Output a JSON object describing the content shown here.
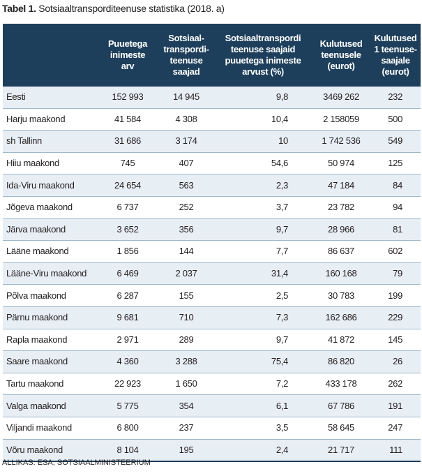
{
  "caption": {
    "label": "Tabel 1.",
    "title": "Sotsiaaltransporditeenuse statistika (2018. a)"
  },
  "table": {
    "columns": [
      "",
      "Puuetega\ninimeste\narv",
      "Sotsiaal-\ntranspordi-\nteenuse\nsaajad",
      "Sotsiaaltranspordi\nteenuse saajaid\npuuetega inimeste\narvust (%)",
      "Kulutused\nteenusele\n(eurot)",
      "Kulutused\n1 teenuse-\nsaajale\n(eurot)"
    ],
    "rows": [
      [
        "Eesti",
        "152 993",
        "14 945",
        "9,8",
        "3469 262",
        "232"
      ],
      [
        "Harju maakond",
        "41 584",
        "4 308",
        "10,4",
        "2 158059",
        "500"
      ],
      [
        "sh Tallinn",
        "31 686",
        "3 174",
        "10",
        "1 742 536",
        "549"
      ],
      [
        "Hiiu maakond",
        "745",
        "407",
        "54,6",
        "50 974",
        "125"
      ],
      [
        "Ida-Viru maakond",
        "24 654",
        "563",
        "2,3",
        "47 184",
        "84"
      ],
      [
        "Jõgeva maakond",
        "6 737",
        "252",
        "3,7",
        "23 782",
        "94"
      ],
      [
        "Järva maakond",
        "3 652",
        "356",
        "9,7",
        "28 966",
        "81"
      ],
      [
        "Lääne maakond",
        "1 856",
        "144",
        "7,7",
        "86 637",
        "602"
      ],
      [
        "Lääne-Viru maakond",
        "6 469",
        "2 037",
        "31,4",
        "160 168",
        "79"
      ],
      [
        "Põlva maakond",
        "6 287",
        "155",
        "2,5",
        "30 783",
        "199"
      ],
      [
        "Pärnu maakond",
        "9 681",
        "710",
        "7,3",
        "162 686",
        "229"
      ],
      [
        "Rapla maakond",
        "2 971",
        "289",
        "9,7",
        "41 872",
        "145"
      ],
      [
        "Saare maakond",
        "4 360",
        "3 288",
        "75,4",
        "86 820",
        "26"
      ],
      [
        "Tartu maakond",
        "22 923",
        "1 650",
        "7,2",
        "433 178",
        "262"
      ],
      [
        "Valga maakond",
        "5 775",
        "354",
        "6,1",
        "67 786",
        "191"
      ],
      [
        "Viljandi maakond",
        "6 800",
        "237",
        "3,5",
        "58 645",
        "247"
      ],
      [
        "Võru maakond",
        "8 104",
        "195",
        "2,4",
        "21 717",
        "111"
      ]
    ]
  },
  "source": "ALLIKAS: ESA, SOTSIAALMINISTEERIUM"
}
